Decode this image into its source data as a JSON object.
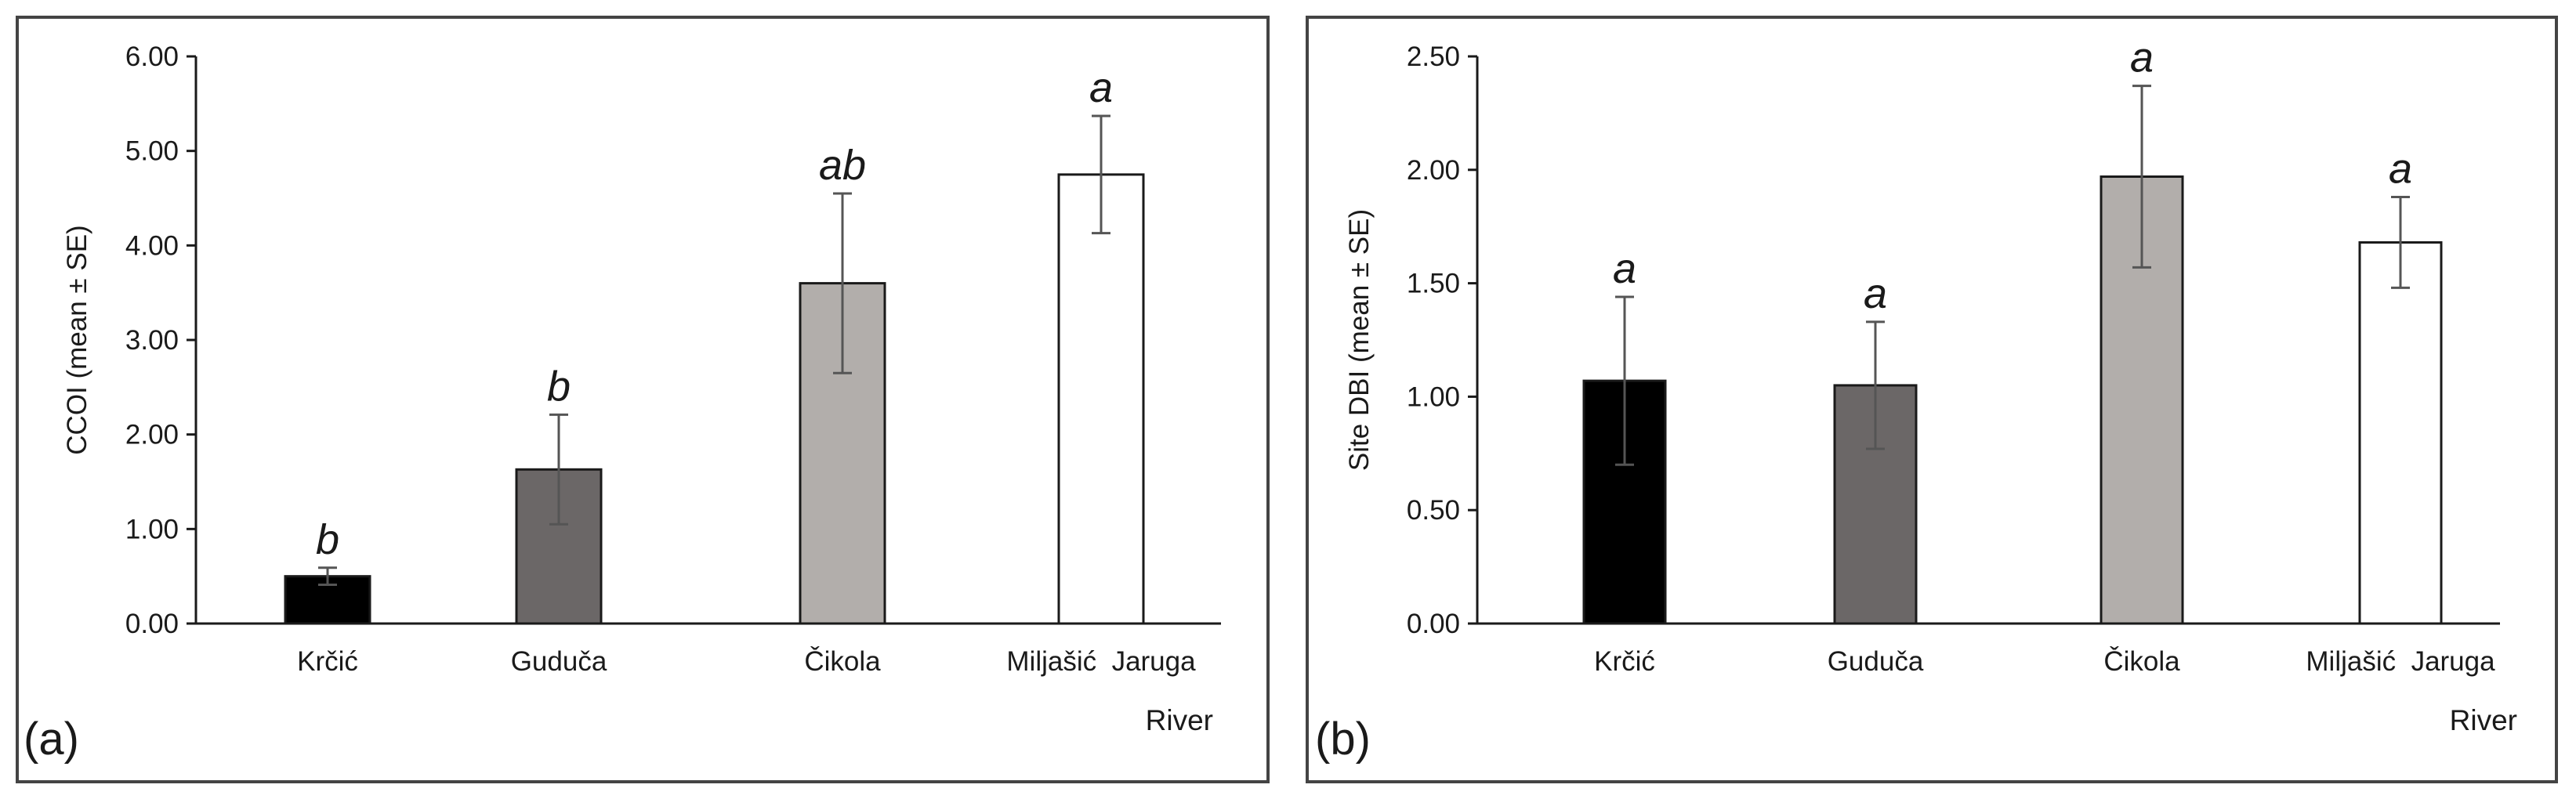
{
  "chart_data": [
    {
      "type": "bar",
      "panel_label": "(a)",
      "title": "",
      "xlabel": "River",
      "ylabel": "CCOI (mean ± SE)",
      "categories": [
        "Krčić",
        "Guduča",
        "Čikola",
        "Miljašić  Jaruga"
      ],
      "values": [
        0.5,
        1.63,
        3.6,
        4.75
      ],
      "errors": [
        0.09,
        0.58,
        0.95,
        0.62
      ],
      "significance": [
        "b",
        "b",
        "ab",
        "a"
      ],
      "bar_colors": [
        "#000000",
        "#6b6767",
        "#b2aeab",
        "#ffffff"
      ],
      "ylim": [
        0,
        6
      ],
      "yticks": [
        "0.00",
        "1.00",
        "2.00",
        "3.00",
        "4.00",
        "5.00",
        "6.00"
      ],
      "grid": false
    },
    {
      "type": "bar",
      "panel_label": "(b)",
      "title": "",
      "xlabel": "River",
      "ylabel": "Site DBI (mean ± SE)",
      "categories": [
        "Krčić",
        "Guduča",
        "Čikola",
        "Miljašić  Jaruga"
      ],
      "values": [
        1.07,
        1.05,
        1.97,
        1.68
      ],
      "errors": [
        0.37,
        0.28,
        0.4,
        0.2
      ],
      "significance": [
        "a",
        "a",
        "a",
        "a"
      ],
      "bar_colors": [
        "#000000",
        "#6b6767",
        "#b2aeab",
        "#ffffff"
      ],
      "ylim": [
        0,
        2.5
      ],
      "yticks": [
        "0.00",
        "0.50",
        "1.00",
        "1.50",
        "2.00",
        "2.50"
      ],
      "grid": false
    }
  ]
}
